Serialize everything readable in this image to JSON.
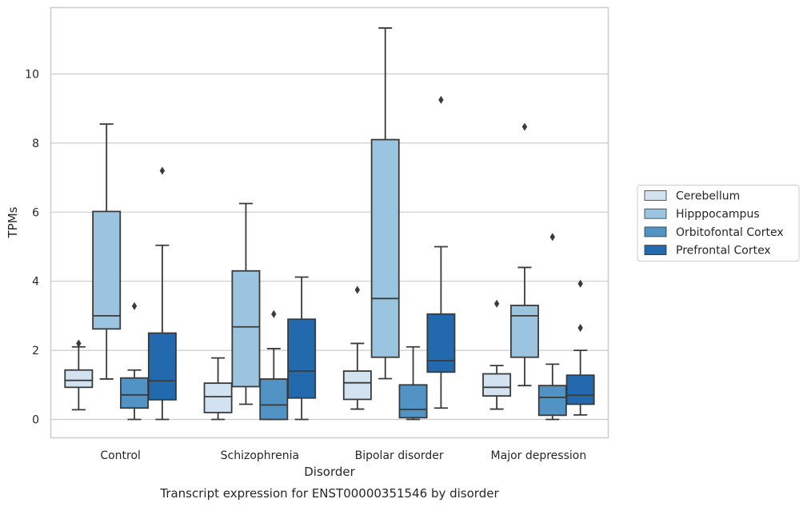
{
  "chart_data": {
    "type": "boxplot",
    "caption": "Transcript expression for ENST00000351546 by disorder",
    "xlabel": "Disorder",
    "ylabel": "TPMs",
    "ylim": [
      -0.55,
      12.2
    ],
    "yticks": [
      0,
      2,
      4,
      6,
      8,
      10
    ],
    "grid": "horizontal",
    "legend_position": "right",
    "categories": [
      "Control",
      "Schizophrenia",
      "Bipolar disorder",
      "Major depression"
    ],
    "series": [
      {
        "name": "Cerebellum",
        "color": "#d2e2f1",
        "boxes": [
          {
            "whislo": 0.28,
            "q1": 0.93,
            "med": 1.13,
            "q3": 1.43,
            "whishi": 2.1,
            "fliers": [
              2.2
            ]
          },
          {
            "whislo": 0.0,
            "q1": 0.2,
            "med": 0.66,
            "q3": 1.05,
            "whishi": 1.78,
            "fliers": []
          },
          {
            "whislo": 0.3,
            "q1": 0.58,
            "med": 1.06,
            "q3": 1.4,
            "whishi": 2.2,
            "fliers": [
              3.75
            ]
          },
          {
            "whislo": 0.3,
            "q1": 0.68,
            "med": 0.93,
            "q3": 1.32,
            "whishi": 1.56,
            "fliers": [
              3.35
            ]
          }
        ]
      },
      {
        "name": "Hipppocampus",
        "color": "#9ac4df",
        "boxes": [
          {
            "whislo": 1.17,
            "q1": 2.62,
            "med": 3.0,
            "q3": 6.02,
            "whishi": 8.55,
            "fliers": []
          },
          {
            "whislo": 0.44,
            "q1": 0.95,
            "med": 2.68,
            "q3": 4.3,
            "whishi": 6.25,
            "fliers": []
          },
          {
            "whislo": 1.18,
            "q1": 1.8,
            "med": 3.5,
            "q3": 8.1,
            "whishi": 11.33,
            "fliers": []
          },
          {
            "whislo": 0.98,
            "q1": 1.8,
            "med": 3.0,
            "q3": 3.3,
            "whishi": 4.4,
            "fliers": [
              8.47
            ]
          }
        ]
      },
      {
        "name": "Orbitofontal Cortex",
        "color": "#5093c4",
        "boxes": [
          {
            "whislo": 0.0,
            "q1": 0.33,
            "med": 0.71,
            "q3": 1.2,
            "whishi": 1.43,
            "fliers": [
              3.28
            ]
          },
          {
            "whislo": 0.0,
            "q1": 0.0,
            "med": 0.42,
            "q3": 1.17,
            "whishi": 2.05,
            "fliers": [
              3.05
            ]
          },
          {
            "whislo": 0.0,
            "q1": 0.05,
            "med": 0.29,
            "q3": 1.0,
            "whishi": 2.1,
            "fliers": []
          },
          {
            "whislo": 0.0,
            "q1": 0.12,
            "med": 0.64,
            "q3": 0.98,
            "whishi": 1.6,
            "fliers": [
              5.28
            ]
          }
        ]
      },
      {
        "name": "Prefrontal Cortex",
        "color": "#2369ad",
        "boxes": [
          {
            "whislo": 0.0,
            "q1": 0.57,
            "med": 1.12,
            "q3": 2.5,
            "whishi": 5.04,
            "fliers": [
              7.2
            ]
          },
          {
            "whislo": 0.0,
            "q1": 0.62,
            "med": 1.4,
            "q3": 2.9,
            "whishi": 4.12,
            "fliers": []
          },
          {
            "whislo": 0.33,
            "q1": 1.37,
            "med": 1.7,
            "q3": 3.05,
            "whishi": 5.0,
            "fliers": [
              9.25
            ]
          },
          {
            "whislo": 0.13,
            "q1": 0.44,
            "med": 0.7,
            "q3": 1.28,
            "whishi": 2.0,
            "fliers": [
              2.65,
              3.93
            ]
          }
        ]
      }
    ]
  }
}
